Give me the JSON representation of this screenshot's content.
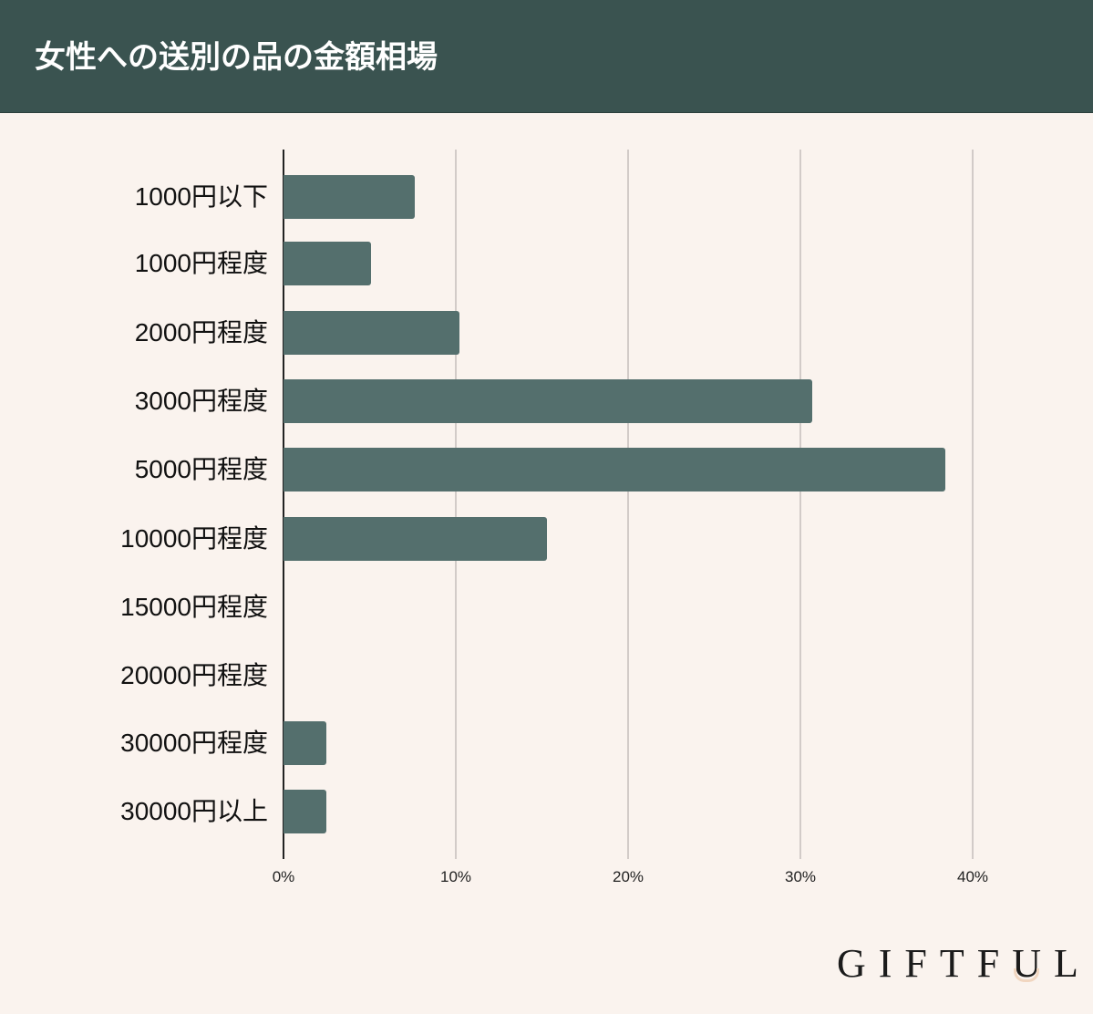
{
  "header": {
    "title": "女性への送別の品の金額相場"
  },
  "colors": {
    "header_bg": "#3a5350",
    "background": "#faf3ee",
    "bar": "#546f6d",
    "grid": "#d2cbc8",
    "logo_accent": "#f1d6c0"
  },
  "axis": {
    "ticks": [
      "0%",
      "10%",
      "20%",
      "30%",
      "40%"
    ]
  },
  "logo": {
    "text_before": "GIFTF",
    "u": "U",
    "text_after": "L"
  },
  "chart_data": {
    "type": "bar",
    "orientation": "horizontal",
    "title": "女性への送別の品の金額相場",
    "categories": [
      "1000円以下",
      "1000円程度",
      "2000円程度",
      "3000円程度",
      "5000円程度",
      "10000円程度",
      "15000円程度",
      "20000円程度",
      "30000円程度",
      "30000円以上"
    ],
    "values": [
      7.6,
      5.1,
      10.2,
      30.7,
      38.4,
      15.3,
      0,
      0,
      2.5,
      2.5
    ],
    "unit": "%",
    "xlabel": "",
    "ylabel": "",
    "xlim": [
      0,
      40
    ],
    "x_tick_labels": [
      "0%",
      "10%",
      "20%",
      "30%",
      "40%"
    ],
    "grid": true,
    "legend": "none"
  }
}
